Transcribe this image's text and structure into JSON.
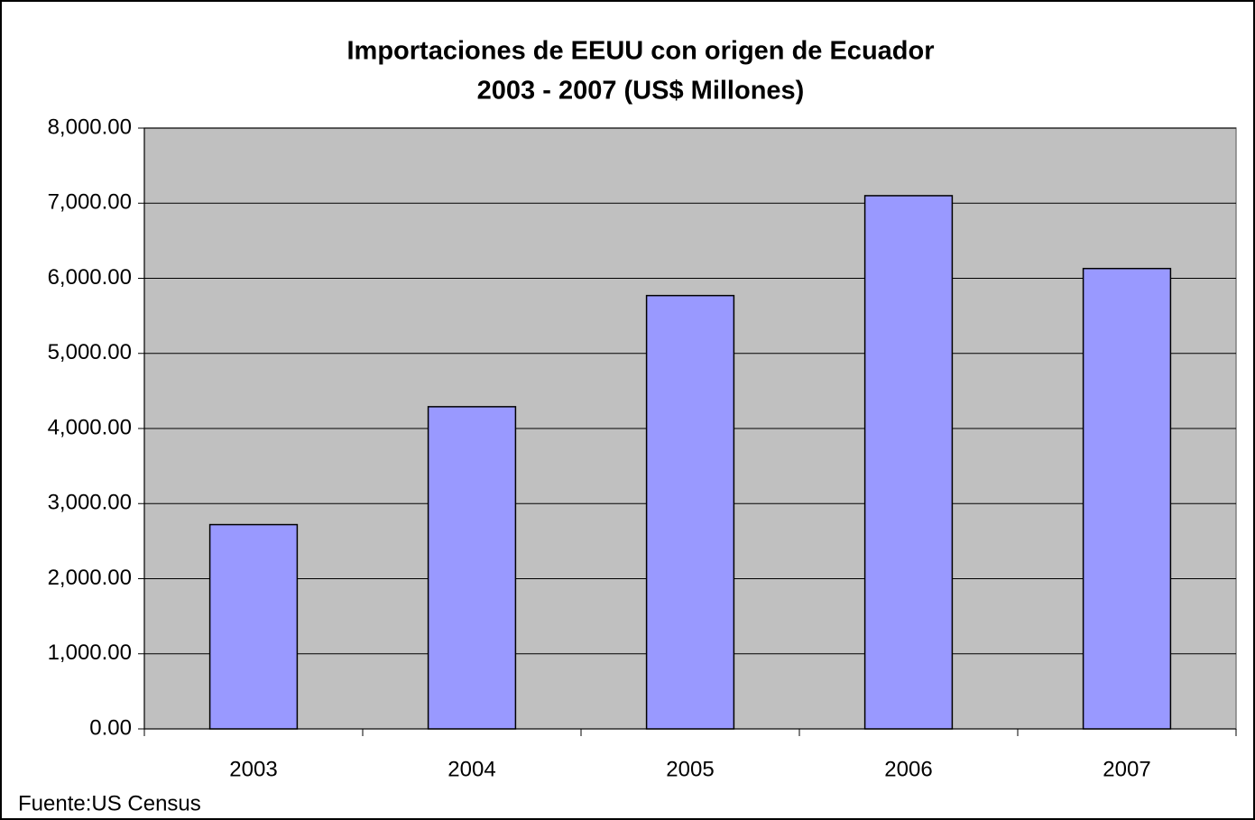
{
  "chart_data": {
    "type": "bar",
    "title": "Importaciones de EEUU con origen de Ecuador",
    "subtitle": "2003 - 2007  (US$ Millones)",
    "source": "Fuente:US Census",
    "categories": [
      "2003",
      "2004",
      "2005",
      "2006",
      "2007"
    ],
    "values": [
      2720,
      4290,
      5770,
      7100,
      6130
    ],
    "color": "#9999ff",
    "ylim": [
      0,
      8000
    ],
    "yticks": [
      {
        "value": 0,
        "label": "0.00"
      },
      {
        "value": 1000,
        "label": "1,000.00"
      },
      {
        "value": 2000,
        "label": "2,000.00"
      },
      {
        "value": 3000,
        "label": "3,000.00"
      },
      {
        "value": 4000,
        "label": "4,000.00"
      },
      {
        "value": 5000,
        "label": "5,000.00"
      },
      {
        "value": 6000,
        "label": "6,000.00"
      },
      {
        "value": 7000,
        "label": "7,000.00"
      },
      {
        "value": 8000,
        "label": "8,000.00"
      }
    ],
    "grid": true
  }
}
